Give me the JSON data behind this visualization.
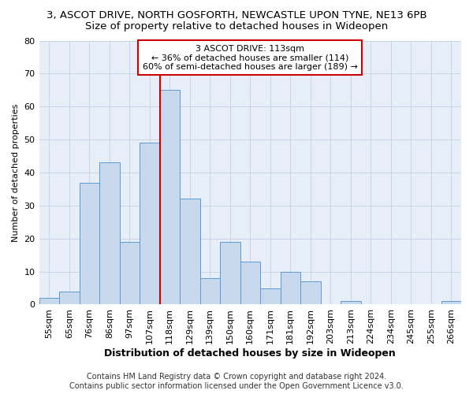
{
  "title": "3, ASCOT DRIVE, NORTH GOSFORTH, NEWCASTLE UPON TYNE, NE13 6PB",
  "subtitle": "Size of property relative to detached houses in Wideopen",
  "xlabel": "Distribution of detached houses by size in Wideopen",
  "ylabel": "Number of detached properties",
  "categories": [
    "55sqm",
    "65sqm",
    "76sqm",
    "86sqm",
    "97sqm",
    "107sqm",
    "118sqm",
    "129sqm",
    "139sqm",
    "150sqm",
    "160sqm",
    "171sqm",
    "181sqm",
    "192sqm",
    "203sqm",
    "213sqm",
    "224sqm",
    "234sqm",
    "245sqm",
    "255sqm",
    "266sqm"
  ],
  "values": [
    2,
    4,
    37,
    43,
    19,
    49,
    65,
    32,
    8,
    19,
    13,
    5,
    10,
    7,
    0,
    1,
    0,
    0,
    0,
    0,
    1
  ],
  "bar_color": "#c8d9ee",
  "bar_edge_color": "#5b9bd5",
  "redline_x": 5.5,
  "annotation_title": "3 ASCOT DRIVE: 113sqm",
  "annotation_line1": "← 36% of detached houses are smaller (114)",
  "annotation_line2": "60% of semi-detached houses are larger (189) →",
  "annotation_box_color": "#ffffff",
  "annotation_box_edge": "#cc0000",
  "ylim": [
    0,
    80
  ],
  "yticks": [
    0,
    10,
    20,
    30,
    40,
    50,
    60,
    70,
    80
  ],
  "grid_color": "#c8d4e8",
  "background_color": "#e8eef8",
  "footer1": "Contains HM Land Registry data © Crown copyright and database right 2024.",
  "footer2": "Contains public sector information licensed under the Open Government Licence v3.0.",
  "title_fontsize": 9.5,
  "subtitle_fontsize": 9.5,
  "xlabel_fontsize": 9,
  "ylabel_fontsize": 8,
  "tick_fontsize": 8,
  "annotation_fontsize": 8,
  "footer_fontsize": 7
}
